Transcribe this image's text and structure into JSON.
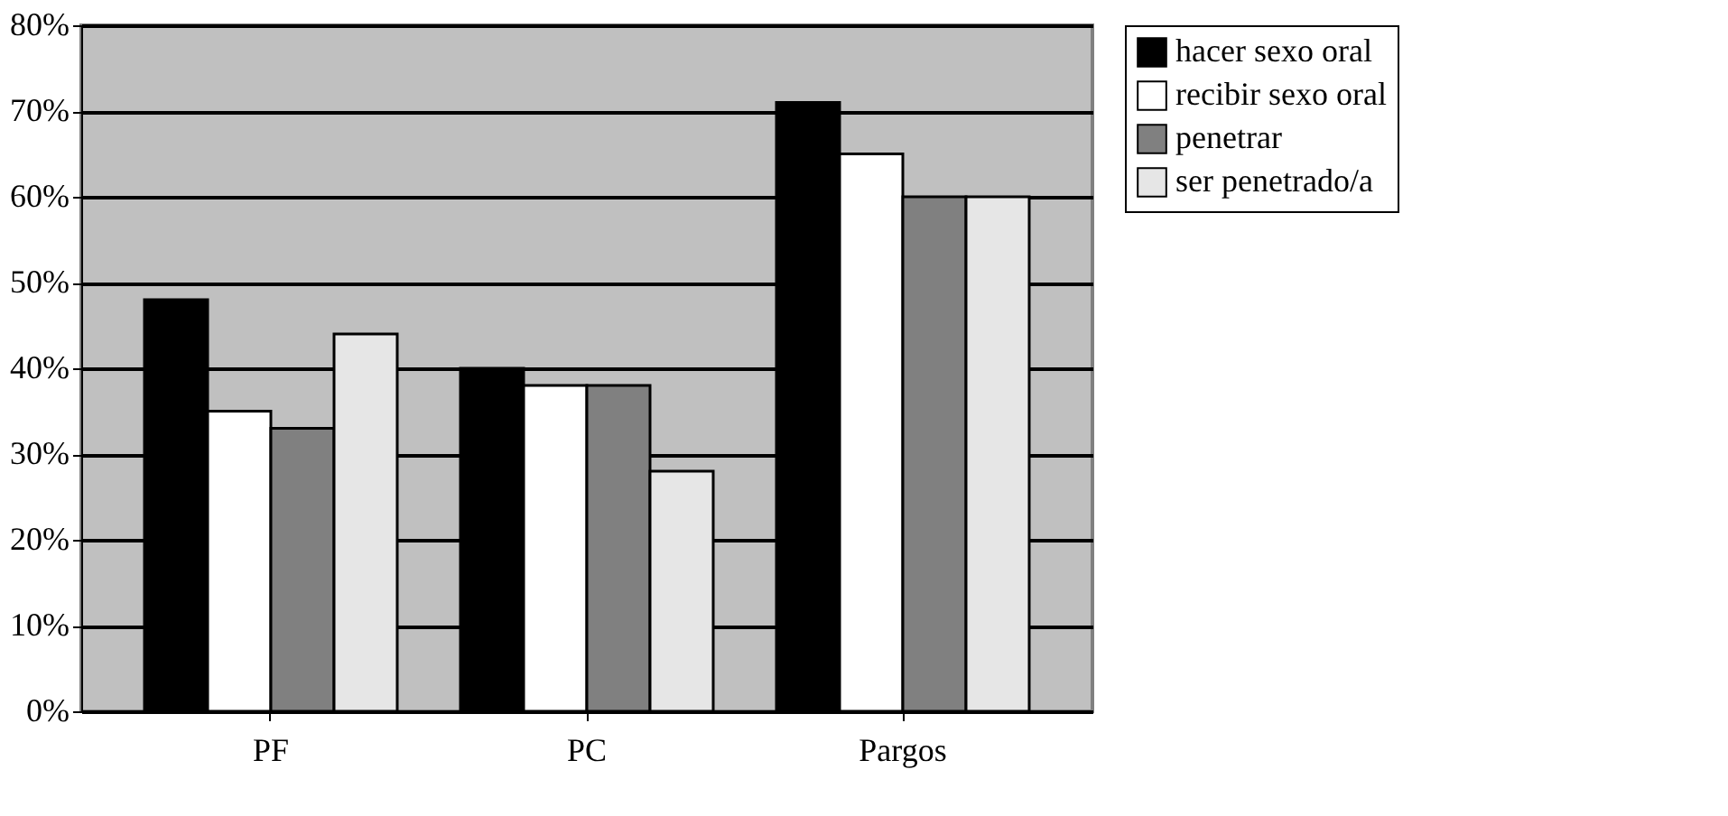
{
  "chart_data": {
    "type": "bar",
    "categories": [
      "PF",
      "PC",
      "Pargos"
    ],
    "series": [
      {
        "name": "hacer sexo oral",
        "color": "#000000",
        "values": [
          48,
          40,
          71
        ]
      },
      {
        "name": "recibir sexo oral",
        "color": "#ffffff",
        "values": [
          35,
          38,
          65
        ]
      },
      {
        "name": "penetrar",
        "color": "#808080",
        "values": [
          33,
          38,
          60
        ]
      },
      {
        "name": "ser penetrado/a",
        "color": "#e6e6e6",
        "values": [
          44,
          28,
          60
        ]
      }
    ],
    "ylim": [
      0,
      80
    ],
    "yticks": [
      {
        "value": 0,
        "label": "0%"
      },
      {
        "value": 10,
        "label": "10%"
      },
      {
        "value": 20,
        "label": "20%"
      },
      {
        "value": 30,
        "label": "30%"
      },
      {
        "value": 40,
        "label": "40%"
      },
      {
        "value": 50,
        "label": "50%"
      },
      {
        "value": 60,
        "label": "60%"
      },
      {
        "value": 70,
        "label": "70%"
      },
      {
        "value": 80,
        "label": "80%"
      }
    ],
    "grid": "y",
    "legend": "right"
  }
}
